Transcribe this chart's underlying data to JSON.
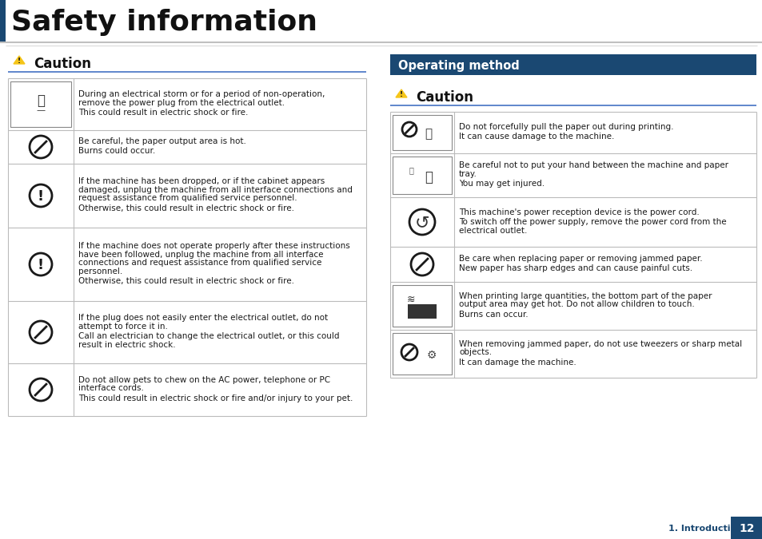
{
  "title": "Safety information",
  "page_bg": "#ffffff",
  "dark_blue": "#1a4872",
  "blue_line": "#4472c4",
  "gray_line": "#bbbbbb",
  "text_dark": "#1a1a1a",
  "left_rows": [
    {
      "text1": "During an electrical storm or for a period of non-operation,\nremove the power plug from the electrical outlet.",
      "text2": "This could result in electric shock or fire."
    },
    {
      "text1": "Be careful, the paper output area is hot.",
      "text2": "Burns could occur."
    },
    {
      "text1": "If the machine has been dropped, or if the cabinet appears\ndamaged, unplug the machine from all interface connections and\nrequest assistance from qualified service personnel.",
      "text2": "Otherwise, this could result in electric shock or fire."
    },
    {
      "text1": "If the machine does not operate properly after these instructions\nhave been followed, unplug the machine from all interface\nconnections and request assistance from qualified service\npersonnel.",
      "text2": "Otherwise, this could result in electric shock or fire."
    },
    {
      "text1": "If the plug does not easily enter the electrical outlet, do not\nattempt to force it in.",
      "text2": "Call an electrician to change the electrical outlet, or this could\nresult in electric shock."
    },
    {
      "text1": "Do not allow pets to chew on the AC power, telephone or PC\ninterface cords.",
      "text2": "This could result in electric shock or fire and/or injury to your pet."
    }
  ],
  "right_rows": [
    {
      "text1": "Do not forcefully pull the paper out during printing.",
      "text2": "It can cause damage to the machine."
    },
    {
      "text1": "Be careful not to put your hand between the machine and paper\ntray.",
      "text2": "You may get injured."
    },
    {
      "text1": "This machine's power reception device is the power cord.",
      "text2": "To switch off the power supply, remove the power cord from the\nelectrical outlet."
    },
    {
      "text1": "Be care when replacing paper or removing jammed paper.",
      "text2": "New paper has sharp edges and can cause painful cuts."
    },
    {
      "text1": "When printing large quantities, the bottom part of the paper\noutput area may get hot. Do not allow children to touch.",
      "text2": "Burns can occur."
    },
    {
      "text1": "When removing jammed paper, do not use tweezers or sharp metal\nobjects.",
      "text2": "It can damage the machine."
    }
  ]
}
